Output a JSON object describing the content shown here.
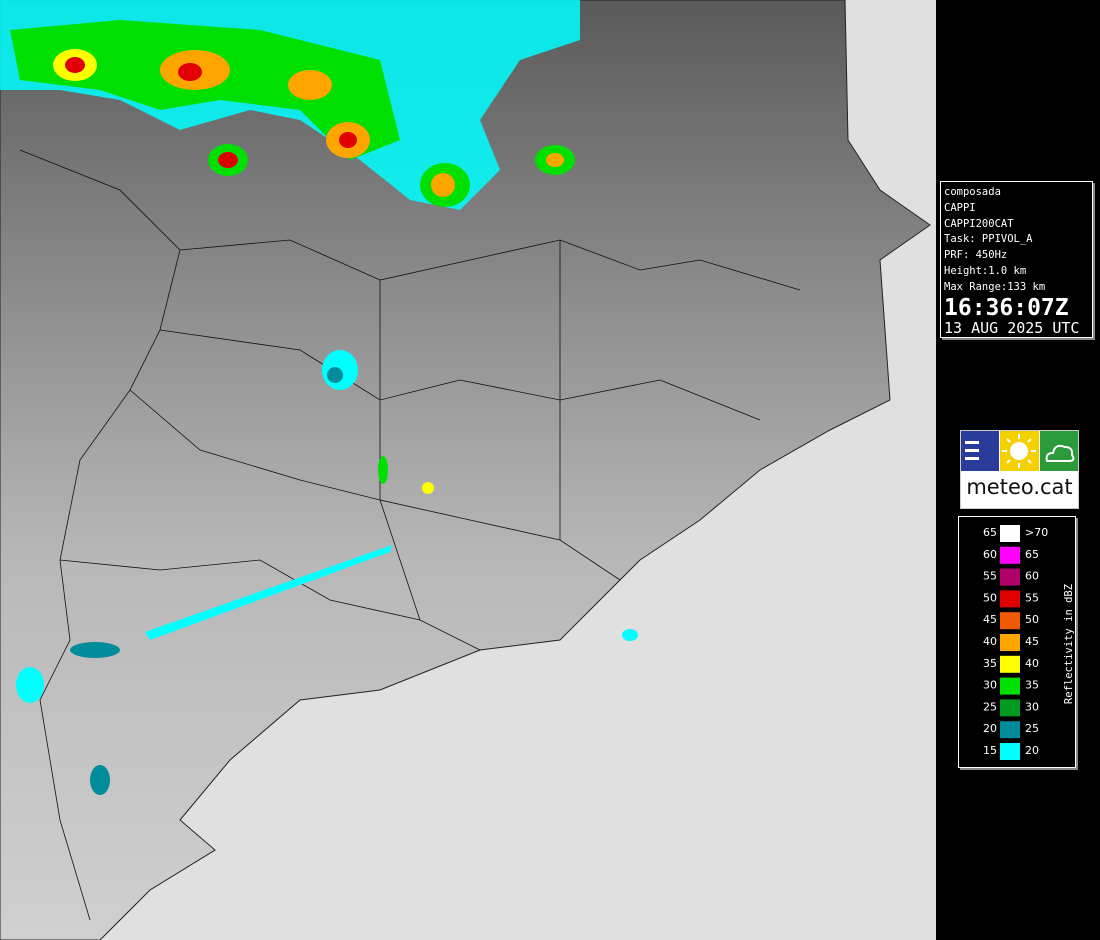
{
  "info": {
    "lines": [
      "composada",
      "CAPPI",
      "CAPPI200CAT",
      "Task: PPIVOL_A",
      "PRF: 450Hz",
      "Height:1.0 km",
      "Max Range:133 km"
    ],
    "time": "16:36:07Z",
    "date": "13 AUG 2025 UTC"
  },
  "logo": {
    "text": "meteo.cat"
  },
  "legend": {
    "title": "Reflectivity in dBZ",
    "rows": [
      {
        "low": 65,
        "high": ">70",
        "color": "#ffffff"
      },
      {
        "low": 60,
        "high": 65,
        "color": "#ff00ff"
      },
      {
        "low": 55,
        "high": 60,
        "color": "#b0006a"
      },
      {
        "low": 50,
        "high": 55,
        "color": "#e00000"
      },
      {
        "low": 45,
        "high": 50,
        "color": "#f05a00"
      },
      {
        "low": 40,
        "high": 45,
        "color": "#ffa500"
      },
      {
        "low": 35,
        "high": 40,
        "color": "#ffff00"
      },
      {
        "low": 30,
        "high": 35,
        "color": "#00e000"
      },
      {
        "low": 25,
        "high": 30,
        "color": "#009a20"
      },
      {
        "low": 20,
        "high": 25,
        "color": "#008c9a"
      },
      {
        "low": 15,
        "high": 20,
        "color": "#00ffff"
      }
    ]
  }
}
